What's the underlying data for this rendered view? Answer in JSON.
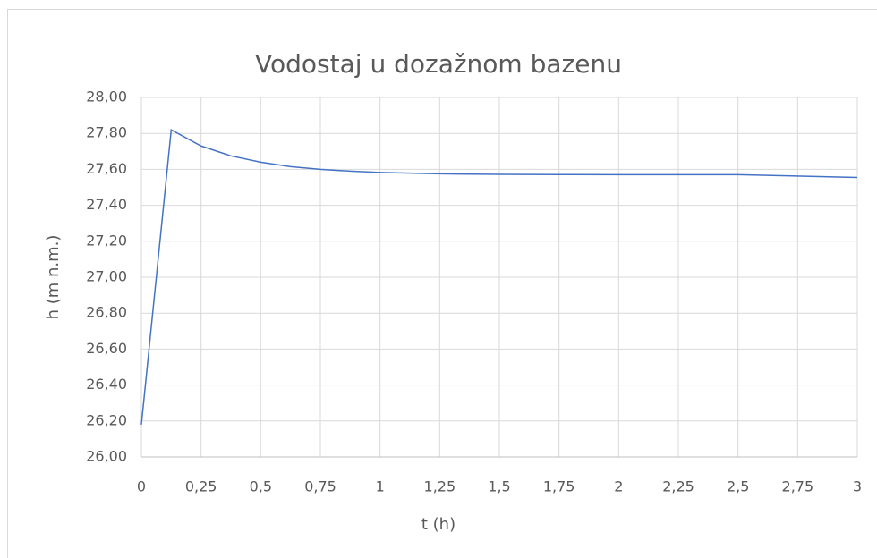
{
  "chart_data": {
    "type": "line",
    "title": "Vodostaj u dozažnom bazenu",
    "x_label": "t (h)",
    "y_label": "h (m n.m.)",
    "x": [
      0,
      0.125,
      0.25,
      0.375,
      0.5,
      0.625,
      0.75,
      0.875,
      1,
      1.25,
      1.5,
      1.75,
      2,
      2.5,
      3
    ],
    "series": [
      {
        "color": "#4472c4",
        "values": [
          26.18,
          27.82,
          27.73,
          27.675,
          27.64,
          27.615,
          27.6,
          27.59,
          27.583,
          27.575,
          27.572,
          27.571,
          27.57,
          27.57,
          27.555
        ]
      }
    ],
    "xlim": [
      0,
      3
    ],
    "xticks": [
      0,
      {
        "value": 0.25,
        "label": "0,25"
      },
      {
        "value": 0.5,
        "label": "0,5"
      },
      {
        "value": 0.75,
        "label": "0,75"
      },
      1,
      {
        "value": 1.25,
        "label": "1,25"
      },
      {
        "value": 1.5,
        "label": "1,5"
      },
      {
        "value": 1.75,
        "label": "1,75"
      },
      2,
      {
        "value": 2.25,
        "label": "2,25"
      },
      {
        "value": 2.5,
        "label": "2,5"
      },
      {
        "value": 2.75,
        "label": "2,75"
      },
      3
    ],
    "ylim": [
      26,
      28
    ],
    "yticks": [
      {
        "value": 26,
        "label": "26,00"
      },
      {
        "value": 26.2,
        "label": "26,20"
      },
      {
        "value": 26.4,
        "label": "26,40"
      },
      {
        "value": 26.6,
        "label": "26,60"
      },
      {
        "value": 26.8,
        "label": "26,80"
      },
      {
        "value": 27,
        "label": "27,00"
      },
      {
        "value": 27.2,
        "label": "27,20"
      },
      {
        "value": 27.4,
        "label": "27,40"
      },
      {
        "value": 27.6,
        "label": "27,60"
      },
      {
        "value": 27.8,
        "label": "27,80"
      },
      {
        "value": 28,
        "label": "28,00"
      }
    ],
    "grid": true
  }
}
